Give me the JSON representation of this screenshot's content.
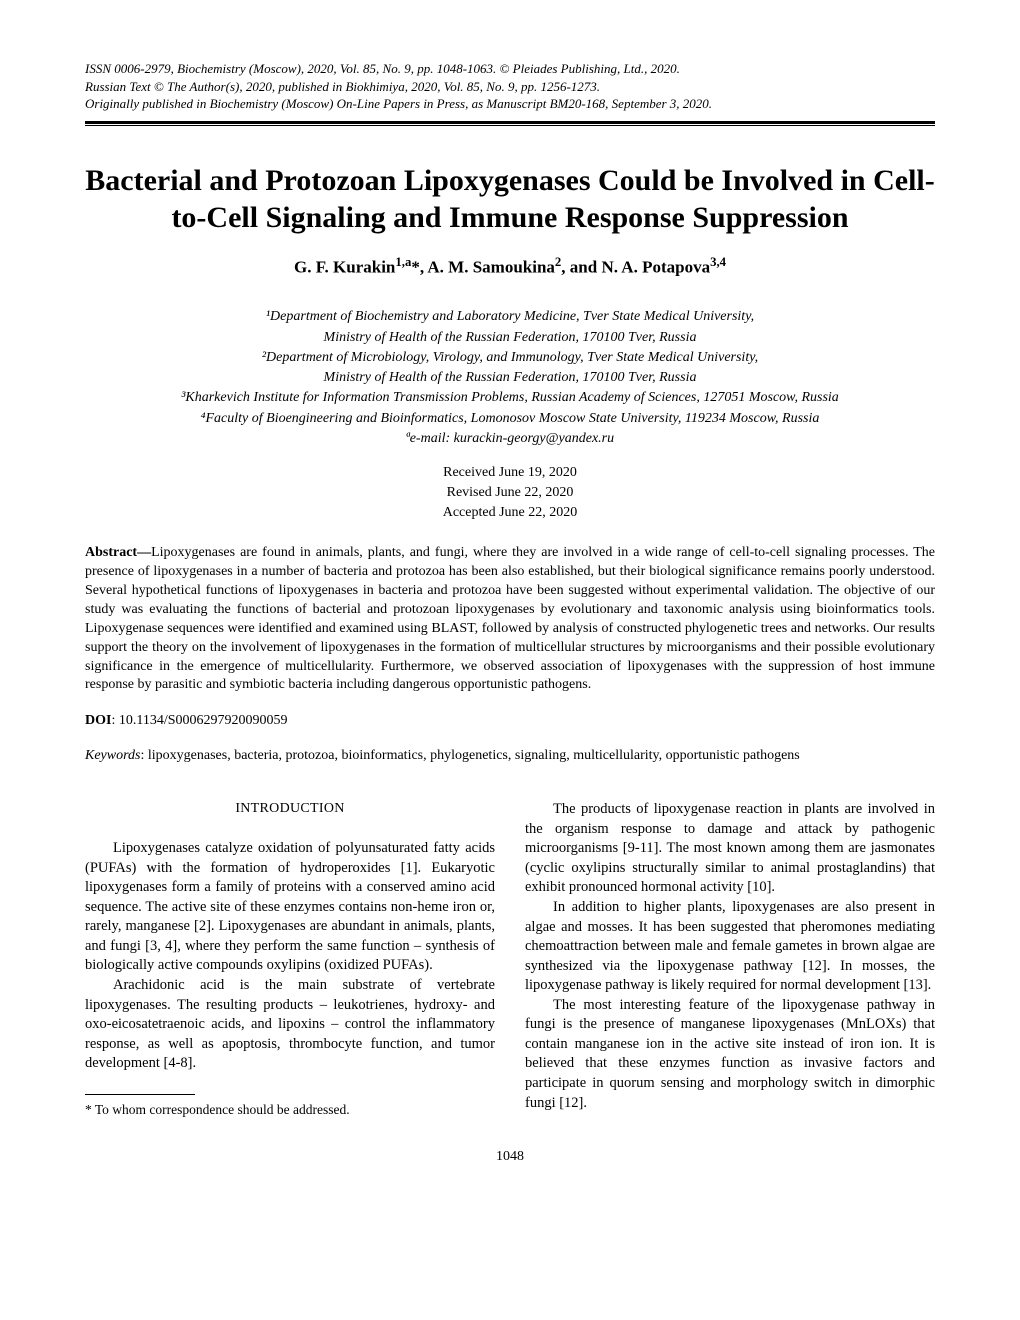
{
  "meta": {
    "line1": "ISSN 0006-2979, Biochemistry (Moscow), 2020, Vol. 85, No. 9, pp. 1048-1063. © Pleiades Publishing, Ltd., 2020.",
    "line2": "Russian Text © The Author(s), 2020, published in Biokhimiya, 2020, Vol. 85, No. 9, pp. 1256-1273.",
    "line3": "Originally published in Biochemistry (Moscow) On-Line Papers in Press, as Manuscript BM20-168, September 3, 2020."
  },
  "title": "Bacterial and Protozoan Lipoxygenases Could be Involved in Cell-to-Cell Signaling and Immune Response Suppression",
  "authors_html": "G. F. Kurakin<sup>1,a</sup>*, A. M. Samoukina<sup>2</sup>, and N. A. Potapova<sup>3,4</sup>",
  "affiliations": {
    "a1": "¹Department of Biochemistry and Laboratory Medicine, Tver State Medical University,",
    "a1b": "Ministry of Health of the Russian Federation, 170100 Tver, Russia",
    "a2": "²Department of Microbiology, Virology, and Immunology, Tver State Medical University,",
    "a2b": "Ministry of Health of the Russian Federation, 170100 Tver, Russia",
    "a3": "³Kharkevich Institute for Information Transmission Problems, Russian Academy of Sciences, 127051 Moscow, Russia",
    "a4": "⁴Faculty of Bioengineering and Bioinformatics, Lomonosov Moscow State University, 119234 Moscow, Russia",
    "email": "ªe-mail: kurackin-georgy@yandex.ru"
  },
  "dates": {
    "received": "Received June 19, 2020",
    "revised": "Revised June 22, 2020",
    "accepted": "Accepted June 22, 2020"
  },
  "abstract": {
    "label": "Abstract—",
    "text": "Lipoxygenases are found in animals, plants, and fungi, where they are involved in a wide range of cell-to-cell signaling processes. The presence of lipoxygenases in a number of bacteria and protozoa has been also established, but their biological significance remains poorly understood. Several hypothetical functions of lipoxygenases in bacteria and protozoa have been suggested without experimental validation. The objective of our study was evaluating the functions of bacterial and protozoan lipoxygenases by evolutionary and taxonomic analysis using bioinformatics tools. Lipoxygenase sequences were identified and examined using BLAST, followed by analysis of constructed phylogenetic trees and networks. Our results support the theory on the involvement of lipoxygenases in the formation of multicellular structures by microorganisms and their possible evolutionary significance in the emergence of multicellularity. Furthermore, we observed association of lipoxygenases with the suppression of host immune response by parasitic and symbiotic bacteria including dangerous opportunistic pathogens."
  },
  "doi": {
    "label": "DOI",
    "value": ": 10.1134/S0006297920090059"
  },
  "keywords": {
    "label": "Keywords",
    "text": ": lipoxygenases, bacteria, protozoa, bioinformatics, phylogenetics, signaling, multicellularity, opportunistic pathogens"
  },
  "section_heading": "INTRODUCTION",
  "left_col": {
    "p1": "Lipoxygenases catalyze oxidation of polyunsaturated fatty acids (PUFAs) with the formation of hydroperoxides [1]. Eukaryotic lipoxygenases form a family of proteins with a conserved amino acid sequence. The active site of these enzymes contains non-heme iron or, rarely, manganese [2]. Lipoxygenases are abundant in animals, plants, and fungi [3, 4], where they perform the same function – synthesis of biologically active compounds oxylipins (oxidized PUFAs).",
    "p2": "Arachidonic acid is the main substrate of vertebrate lipoxygenases. The resulting products – leukotrienes, hydroxy- and oxo-eicosatetraenoic acids, and lipoxins – control the inflammatory response, as well as apoptosis, thrombocyte function, and tumor development [4-8]."
  },
  "right_col": {
    "p1": "The products of lipoxygenase reaction in plants are involved in the organism response to damage and attack by pathogenic microorganisms [9-11]. The most known among them are jasmonates (cyclic oxylipins structurally similar to animal prostaglandins) that exhibit pronounced hormonal activity [10].",
    "p2": "In addition to higher plants, lipoxygenases are also present in algae and mosses. It has been suggested that pheromones mediating chemoattraction between male and female gametes in brown algae are synthesized via the lipoxygenase pathway [12]. In mosses, the lipoxygenase pathway is likely required for normal development [13].",
    "p3": "The most interesting feature of the lipoxygenase pathway in fungi is the presence of manganese lipoxygenases (MnLOXs) that contain manganese ion in the active site instead of iron ion. It is believed that these enzymes function as invasive factors and participate in quorum sensing and morphology switch in dimorphic fungi [12]."
  },
  "footnote": "* To whom correspondence should be addressed.",
  "page_number": "1048"
}
